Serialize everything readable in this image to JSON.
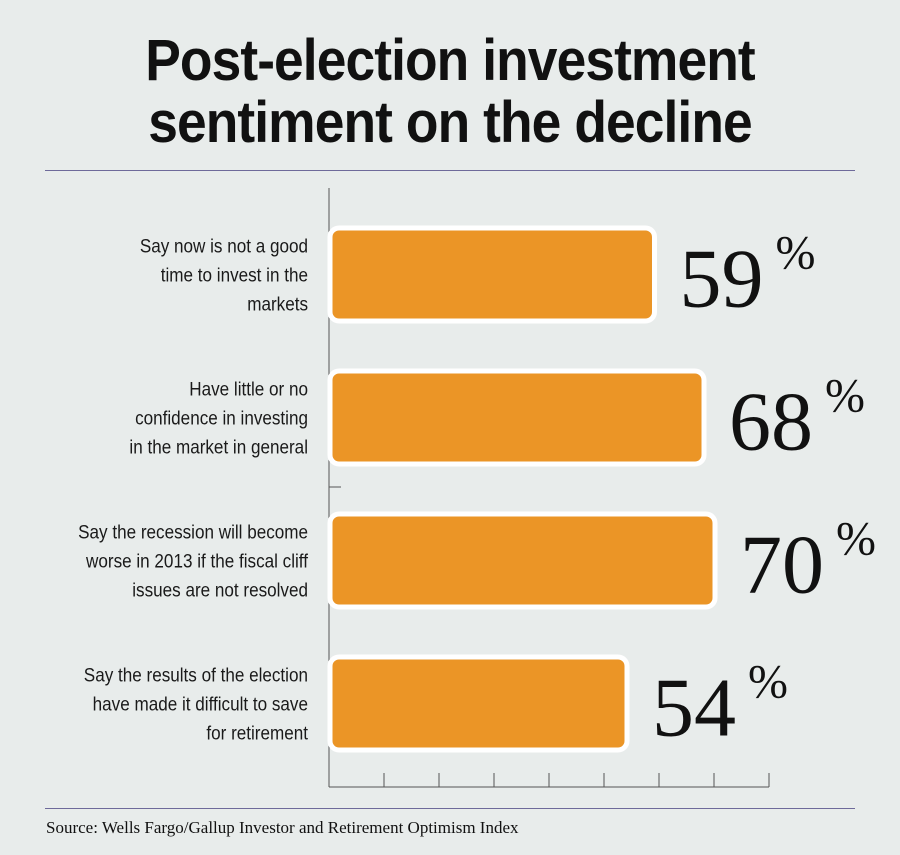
{
  "title_lines": [
    "Post-election investment",
    "sentiment on the decline"
  ],
  "source": "Source: Wells Fargo/Gallup Investor and Retirement Optimism Index",
  "colors": {
    "bar": "#eb9526",
    "bar_border": "#ffffff",
    "axis": "#555555",
    "rule": "#6e6a9a",
    "background": "#e8eceb"
  },
  "chart_data": {
    "type": "bar",
    "orientation": "horizontal",
    "categories": [
      [
        "Say now is not a good",
        "time to invest in the",
        "markets"
      ],
      [
        "Have little or no",
        "confidence in investing",
        "in the market in general"
      ],
      [
        "Say the recession will become",
        "worse in 2013 if the fiscal cliff",
        "issues are not resolved"
      ],
      [
        "Say the results of the election",
        "have made it difficult to save",
        "for retirement"
      ]
    ],
    "values": [
      59,
      68,
      70,
      54
    ],
    "value_labels": [
      "59",
      "68",
      "70",
      "54"
    ],
    "unit": "%",
    "xlim": [
      0,
      80
    ],
    "grid": false
  }
}
